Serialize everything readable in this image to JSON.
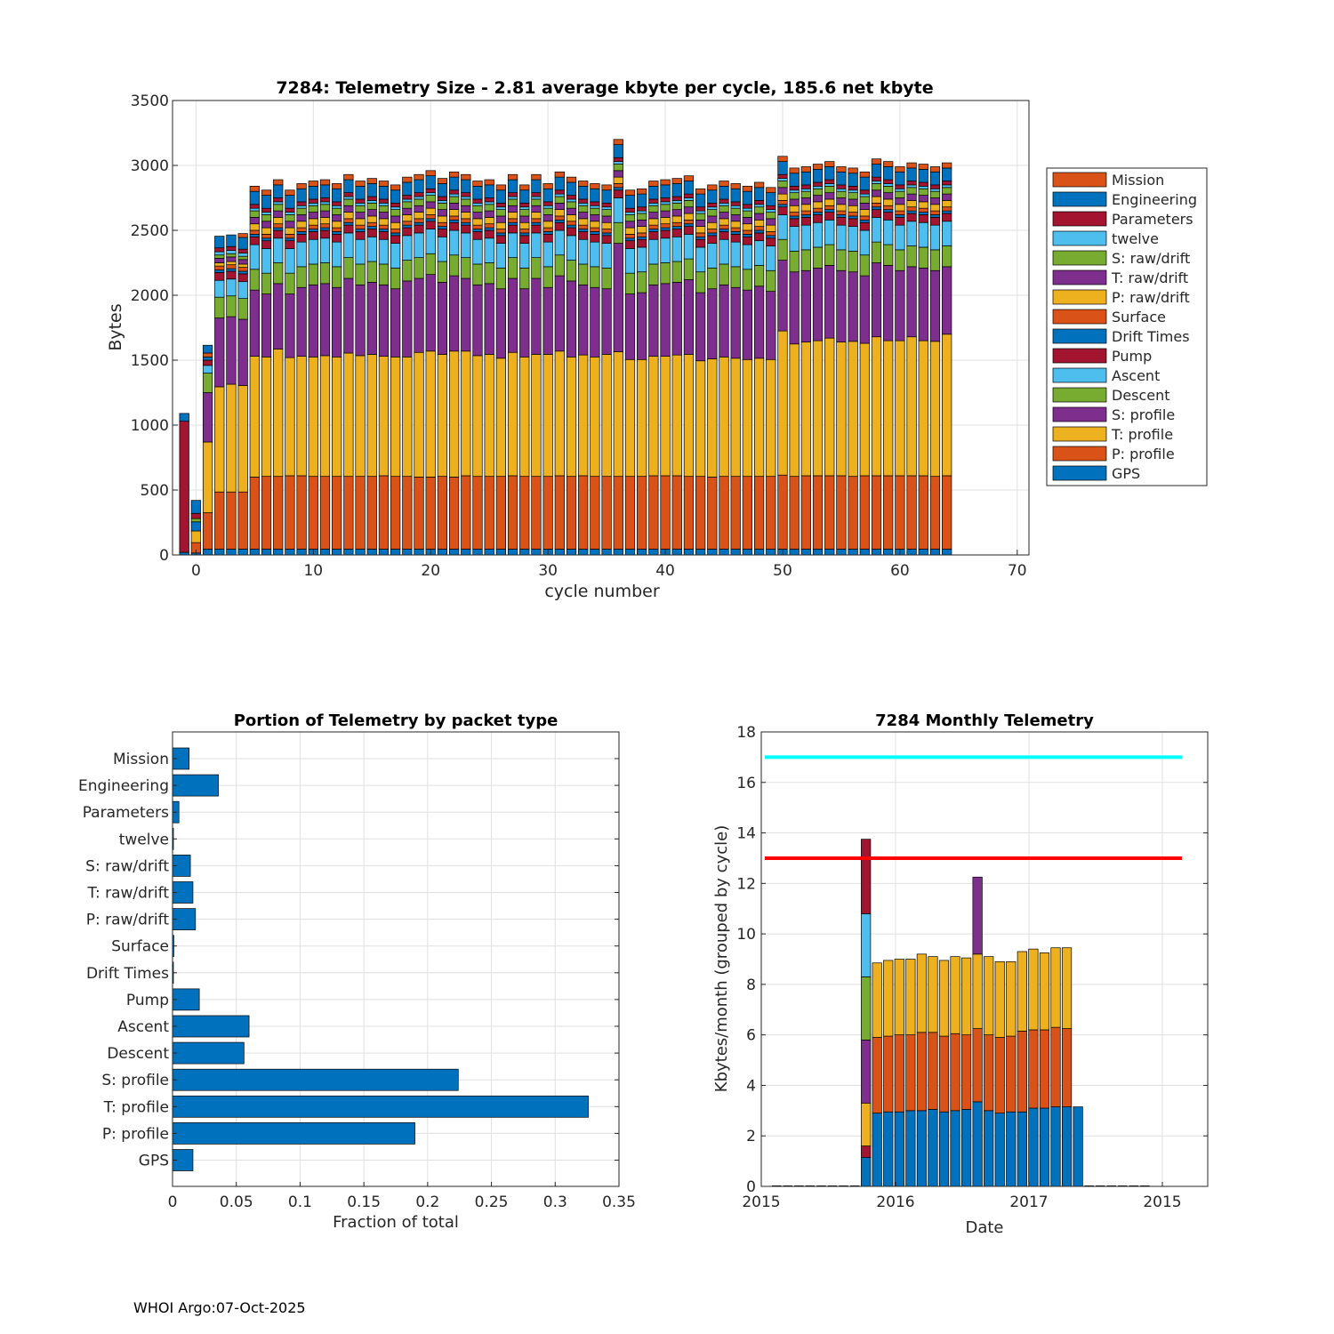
{
  "footer": "WHOI Argo:07-Oct-2025",
  "legend_labels": [
    "Mission",
    "Engineering",
    "Parameters",
    "twelve",
    "S: raw/drift",
    "T: raw/drift",
    "P: raw/drift",
    "Surface",
    "Drift Times",
    "Pump",
    "Ascent",
    "Descent",
    "S: profile",
    "T: profile",
    "P: profile",
    "GPS"
  ],
  "colors": {
    "blue": "#0072BD",
    "orange": "#D95319",
    "yellow": "#EDB120",
    "purple": "#7E2F8E",
    "green": "#77AC30",
    "cyan": "#4DBEEE",
    "darkred": "#A2142F",
    "limit_cyan": "#00FFFF",
    "limit_red": "#FF0000"
  },
  "chart_data": [
    {
      "id": "telemetry_size",
      "type": "bar",
      "stacked": true,
      "title": "7284: Telemetry Size - 2.81 average kbyte per cycle,  185.6 net kbyte",
      "xlabel": "cycle number",
      "ylabel": "Bytes",
      "xlim": [
        -2,
        71
      ],
      "ylim": [
        0,
        3500
      ],
      "xticks": [
        0,
        10,
        20,
        30,
        40,
        50,
        60,
        70
      ],
      "yticks": [
        0,
        500,
        1000,
        1500,
        2000,
        2500,
        3000,
        3500
      ],
      "grid": true,
      "legend": "outside-right",
      "series_order": [
        "GPS",
        "P: profile",
        "T: profile",
        "S: profile",
        "Descent",
        "Ascent",
        "Pump",
        "Drift Times",
        "Surface",
        "P: raw/drift",
        "T: raw/drift",
        "S: raw/drift",
        "twelve",
        "Parameters",
        "Engineering",
        "Mission"
      ],
      "series_colors": [
        "#0072BD",
        "#D95319",
        "#EDB120",
        "#7E2F8E",
        "#77AC30",
        "#4DBEEE",
        "#A2142F",
        "#0072BD",
        "#D95319",
        "#EDB120",
        "#7E2F8E",
        "#77AC30",
        "#4DBEEE",
        "#A2142F",
        "#0072BD",
        "#D95319"
      ],
      "special_bars": [
        {
          "cycle": -1,
          "segments": [
            20,
            0,
            0,
            0,
            0,
            0,
            1010,
            0,
            0,
            0,
            0,
            0,
            0,
            0,
            60,
            0
          ]
        },
        {
          "cycle": 0,
          "segments": [
            15,
            80,
            90,
            0,
            0,
            0,
            0,
            70,
            0,
            0,
            0,
            25,
            0,
            40,
            100,
            0
          ]
        },
        {
          "cycle": 1,
          "segments": [
            45,
            280,
            545,
            380,
            150,
            60,
            40,
            25,
            30,
            0,
            0,
            0,
            0,
            0,
            60,
            0
          ]
        },
        {
          "cycle": 2,
          "segments": [
            45,
            440,
            810,
            530,
            160,
            130,
            60,
            20,
            30,
            25,
            35,
            25,
            25,
            30,
            90,
            0
          ]
        },
        {
          "cycle": 3,
          "segments": [
            45,
            440,
            830,
            520,
            160,
            130,
            60,
            20,
            30,
            25,
            35,
            25,
            25,
            30,
            90,
            0
          ]
        },
        {
          "cycle": 4,
          "segments": [
            45,
            440,
            820,
            510,
            160,
            130,
            60,
            20,
            30,
            25,
            35,
            25,
            25,
            30,
            90,
            30
          ]
        }
      ],
      "regular_cycles_start": 5,
      "regular_segments": [
        45,
        560,
        920,
        630,
        160,
        190,
        60,
        20,
        30,
        50,
        50,
        50,
        20,
        30,
        100,
        40
      ],
      "regular_totals": [
        2840,
        2810,
        2890,
        2810,
        2860,
        2880,
        2890,
        2860,
        2930,
        2880,
        2900,
        2880,
        2850,
        2910,
        2930,
        2960,
        2900,
        2950,
        2930,
        2880,
        2890,
        2850,
        2930,
        2850,
        2930,
        2860,
        2950,
        2910,
        2880,
        2860,
        2850,
        3200,
        2810,
        2820,
        2880,
        2890,
        2900,
        2920,
        2820,
        2850,
        2880,
        2860,
        2840,
        2870,
        2830,
        3070,
        2980,
        2990,
        3010,
        3030,
        2990,
        2980,
        2950,
        3050,
        3030,
        2990,
        3020,
        3010,
        2990,
        3020
      ],
      "regular_p_profile_values": [
        555,
        560,
        560,
        565,
        565,
        560,
        560,
        560,
        560,
        560,
        560,
        565,
        560,
        560,
        555,
        555,
        560,
        555,
        565,
        560,
        560,
        560,
        565,
        560,
        560,
        560,
        565,
        560,
        565,
        560,
        560,
        560,
        560,
        560,
        565,
        565,
        565,
        560,
        560,
        555,
        560,
        560,
        560,
        560,
        560,
        570,
        560,
        565,
        565,
        565,
        565,
        560,
        565,
        565,
        565,
        565,
        565,
        565,
        560,
        565
      ],
      "regular_t_profile_values": [
        930,
        920,
        980,
        910,
        920,
        920,
        930,
        920,
        950,
        930,
        940,
        920,
        920,
        920,
        960,
        970,
        940,
        970,
        960,
        930,
        940,
        910,
        950,
        920,
        940,
        940,
        960,
        920,
        930,
        920,
        940,
        960,
        900,
        900,
        920,
        920,
        930,
        940,
        890,
        910,
        920,
        910,
        900,
        910,
        900,
        1110,
        1020,
        1030,
        1040,
        1060,
        1030,
        1040,
        1020,
        1070,
        1040,
        1040,
        1070,
        1040,
        1040,
        1090
      ]
    },
    {
      "id": "packet_portion",
      "type": "bar",
      "orientation": "horizontal",
      "title": "Portion of Telemetry by packet type",
      "xlabel": "Fraction of total",
      "ylabel": "",
      "xlim": [
        0,
        0.35
      ],
      "xticks": [
        0,
        0.05,
        0.1,
        0.15,
        0.2,
        0.25,
        0.3,
        0.35
      ],
      "xtick_labels": [
        "0",
        "0.05",
        "0.1",
        "0.15",
        "0.2",
        "0.25",
        "0.3",
        "0.35"
      ],
      "grid": true,
      "categories": [
        "Mission",
        "Engineering",
        "Parameters",
        "twelve",
        "S: raw/drift",
        "T: raw/drift",
        "P: raw/drift",
        "Surface",
        "Drift Times",
        "Pump",
        "Ascent",
        "Descent",
        "S: profile",
        "T: profile",
        "P: profile",
        "GPS"
      ],
      "values": [
        0.013,
        0.036,
        0.005,
        0.0005,
        0.014,
        0.016,
        0.018,
        0.001,
        0.0005,
        0.021,
        0.06,
        0.056,
        0.224,
        0.326,
        0.19,
        0.016
      ]
    },
    {
      "id": "monthly_telemetry",
      "type": "bar",
      "stacked": true,
      "title": "7284 Monthly Telemetry",
      "xlabel": "Date",
      "ylabel": "Kbytes/month (grouped by cycle)",
      "ylim": [
        0,
        18
      ],
      "yticks": [
        0,
        2,
        4,
        6,
        8,
        10,
        12,
        14,
        16,
        18
      ],
      "xtick_labels": [
        "2015",
        "2016",
        "2017",
        "2015"
      ],
      "grid": true,
      "month_slots": 34,
      "bars_start_slot": 8,
      "bar_segments_order": [
        "blue",
        "darkred",
        "yellow",
        "purple",
        "green",
        "cyan",
        "darkred2",
        "orange_mid",
        "yellow_top",
        "purple_top"
      ],
      "bars": [
        {
          "blue": 1.15,
          "darkred": 0.45,
          "yellow": 1.7,
          "purple": 2.5,
          "green": 2.5,
          "cyan": 2.5,
          "darkred2": 2.95
        },
        {
          "blue": 2.9,
          "orange": 3.0,
          "yellow_top": 2.95
        },
        {
          "blue": 2.95,
          "orange": 3.0,
          "yellow_top": 3.0
        },
        {
          "blue": 2.95,
          "orange": 3.05,
          "yellow_top": 3.0
        },
        {
          "blue": 3.0,
          "orange": 3.0,
          "yellow_top": 3.0
        },
        {
          "blue": 3.0,
          "orange": 3.1,
          "yellow_top": 3.1
        },
        {
          "blue": 3.05,
          "orange": 3.05,
          "yellow_top": 3.0
        },
        {
          "blue": 2.95,
          "orange": 3.0,
          "yellow_top": 3.0
        },
        {
          "blue": 3.0,
          "orange": 3.05,
          "yellow_top": 3.05
        },
        {
          "blue": 3.05,
          "orange": 2.95,
          "yellow_top": 3.05
        },
        {
          "blue": 3.35,
          "orange": 2.9,
          "yellow_top": 2.95,
          "purple_top": 3.05
        },
        {
          "blue": 3.0,
          "orange": 3.0,
          "yellow_top": 3.1
        },
        {
          "blue": 2.9,
          "orange": 3.0,
          "yellow_top": 3.0
        },
        {
          "blue": 2.95,
          "orange": 3.0,
          "yellow_top": 2.95
        },
        {
          "blue": 2.95,
          "orange": 3.2,
          "yellow_top": 3.15
        },
        {
          "blue": 3.1,
          "orange": 3.1,
          "yellow_top": 3.2
        },
        {
          "blue": 3.1,
          "orange": 3.1,
          "yellow_top": 3.05
        },
        {
          "blue": 3.15,
          "orange": 3.15,
          "yellow_top": 3.15
        },
        {
          "blue": 3.15,
          "orange": 3.1,
          "yellow_top": 3.2
        },
        {
          "blue": 3.15
        }
      ],
      "reference_lines": [
        {
          "y": 17,
          "color": "#00FFFF"
        },
        {
          "y": 13,
          "color": "#FF0000"
        }
      ]
    }
  ]
}
